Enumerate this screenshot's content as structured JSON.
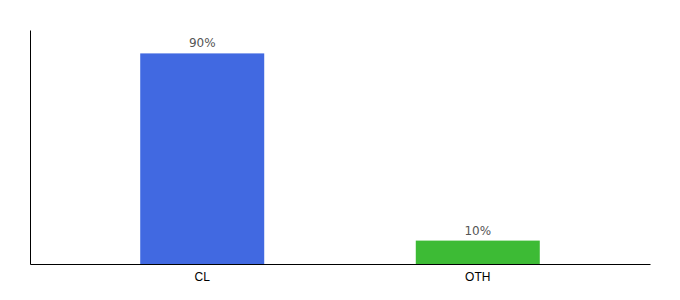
{
  "chart_data": {
    "type": "bar",
    "categories": [
      "CL",
      "OTH"
    ],
    "values": [
      90,
      10
    ],
    "value_labels": [
      "90%",
      "10%"
    ],
    "colors": [
      "#4169e1",
      "#3dbb35"
    ],
    "ylim": [
      0,
      100
    ],
    "data_labels": true,
    "tick_labels": "x"
  }
}
